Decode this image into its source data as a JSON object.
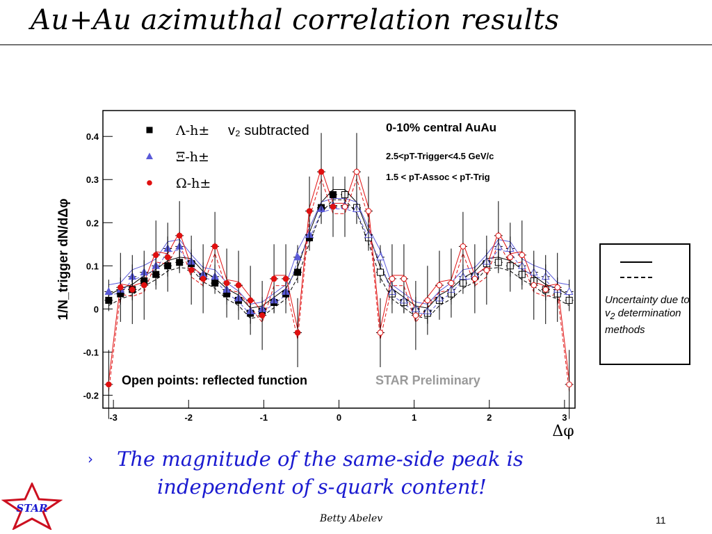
{
  "slide": {
    "title": "Au+Au azimuthal correlation results",
    "bullet": {
      "line1": "The magnitude of the same-side peak is",
      "line2": "independent of s-quark content!"
    },
    "legend_box": {
      "text_before": "Uncertainty due to v",
      "text_sub": "2",
      "text_after": " determination methods"
    },
    "author": "Betty Abelev",
    "page": "11",
    "logo_text": "STAR"
  },
  "chart_data": {
    "type": "scatter",
    "xlabel": "Δφ",
    "ylabel": "1/N_trigger dN/dΔφ",
    "xlim": [
      -3.14,
      3.14
    ],
    "ylim": [
      -0.23,
      0.46
    ],
    "xticks": [
      -3,
      -2,
      -1,
      0,
      1,
      2,
      3
    ],
    "yticks": [
      -0.2,
      -0.1,
      0,
      0.1,
      0.2,
      0.3,
      0.4
    ],
    "grid": false,
    "legend_placement": "top-left",
    "annotations": {
      "v2": "v₂ subtracted",
      "centrality": "0-10% central AuAu",
      "trigger": "2.5<pT-Trigger<4.5 GeV/c",
      "assoc": "1.5 < pT-Assoc < pT-Trig",
      "open_points": "Open points: reflected function",
      "preliminary": "STAR Preliminary"
    },
    "x": [
      0.0785,
      0.2356,
      0.3927,
      0.5498,
      0.7069,
      0.864,
      1.021,
      1.178,
      1.336,
      1.493,
      1.65,
      1.807,
      1.964,
      2.121,
      2.278,
      2.435,
      2.592,
      2.749,
      2.906,
      3.063
    ],
    "series": [
      {
        "name": "Λ-h±",
        "color": "#000000",
        "marker": "square",
        "values": [
          0.265,
          0.235,
          0.165,
          0.085,
          0.035,
          0.015,
          -0.005,
          -0.01,
          0.02,
          0.035,
          0.06,
          0.075,
          0.105,
          0.108,
          0.1,
          0.08,
          0.065,
          0.045,
          0.035,
          0.02
        ],
        "errors": [
          0.035,
          0.035,
          0.03,
          0.025,
          0.025,
          0.025,
          0.025,
          0.025,
          0.025,
          0.025,
          0.025,
          0.025,
          0.025,
          0.025,
          0.025,
          0.025,
          0.025,
          0.025,
          0.025,
          0.025
        ]
      },
      {
        "name": "Ξ-h±",
        "color": "#5a5ad8",
        "marker": "triangle",
        "values": [
          0.24,
          0.232,
          0.172,
          0.12,
          0.04,
          0.02,
          0.0,
          -0.005,
          0.025,
          0.045,
          0.075,
          0.08,
          0.11,
          0.145,
          0.14,
          0.1,
          0.085,
          0.075,
          0.045,
          0.04
        ],
        "errors": [
          0.035,
          0.035,
          0.03,
          0.028,
          0.028,
          0.028,
          0.028,
          0.028,
          0.028,
          0.028,
          0.028,
          0.028,
          0.028,
          0.028,
          0.028,
          0.028,
          0.028,
          0.028,
          0.028,
          0.028
        ]
      },
      {
        "name": "Ω-h±",
        "color": "#e01010",
        "marker": "circle",
        "values": [
          0.237,
          0.318,
          0.227,
          -0.055,
          0.07,
          0.07,
          -0.015,
          0.02,
          0.055,
          0.06,
          0.145,
          0.07,
          0.09,
          0.17,
          0.12,
          0.125,
          0.055,
          0.045,
          0.05,
          -0.175
        ],
        "errors": [
          0.07,
          0.09,
          0.08,
          0.08,
          0.08,
          0.08,
          0.08,
          0.08,
          0.08,
          0.08,
          0.08,
          0.08,
          0.08,
          0.08,
          0.08,
          0.08,
          0.08,
          0.08,
          0.08,
          0.08
        ]
      }
    ]
  }
}
